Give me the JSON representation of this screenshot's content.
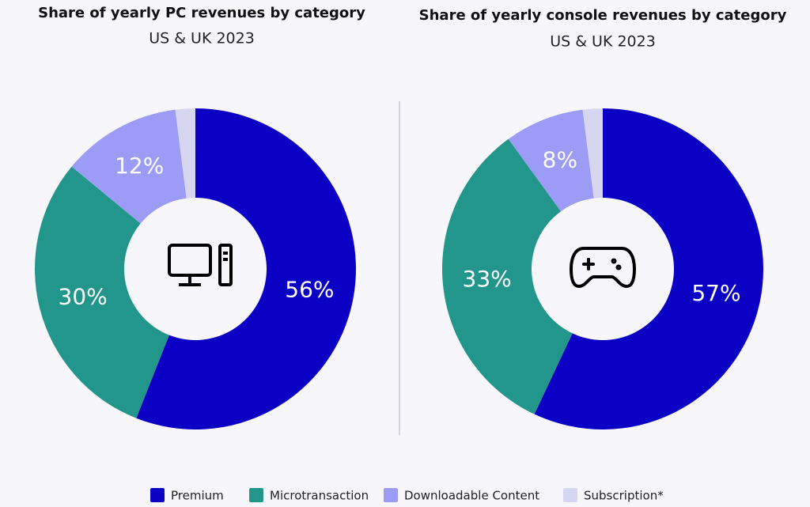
{
  "legend": [
    {
      "name": "Premium",
      "color": "#0b00c4"
    },
    {
      "name": "Microtransaction",
      "color": "#22968a"
    },
    {
      "name": "Downloadable Content",
      "color": "#9c9cf7"
    },
    {
      "name": "Subscription*",
      "color": "#d6d6f0"
    }
  ],
  "chart_data": [
    {
      "type": "pie",
      "title": "Share of yearly PC revenues by category",
      "subtitle": "US & UK 2023",
      "values": [
        56,
        30,
        12,
        2
      ],
      "value_labels": [
        "56%",
        "30%",
        "12%",
        null
      ]
    },
    {
      "type": "pie",
      "title": "Share of yearly console revenues by category",
      "subtitle": "US & UK 2023",
      "values": [
        57,
        33,
        8,
        2
      ],
      "value_labels": [
        "57%",
        "33%",
        "8%",
        null
      ]
    }
  ]
}
